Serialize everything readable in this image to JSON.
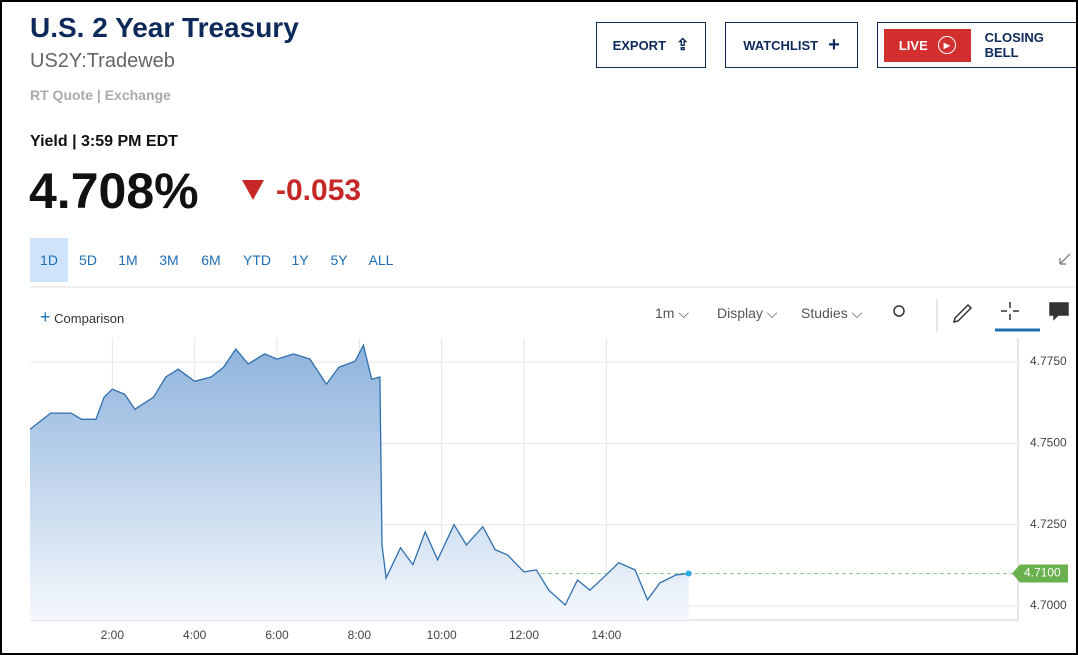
{
  "header": {
    "title": "U.S. 2 Year Treasury",
    "symbol": "US2Y:Tradeweb",
    "source": "RT Quote | Exchange",
    "yield_time": "Yield | 3:59 PM EDT",
    "price": "4.708%",
    "change": "-0.053"
  },
  "buttons": [
    "EXPORT",
    "WATCHLIST",
    "LIVE",
    "CLOSING BELL"
  ],
  "ranges": [
    "1D",
    "5D",
    "1M",
    "3M",
    "6M",
    "YTD",
    "1Y",
    "5Y",
    "ALL"
  ],
  "toolbar": {
    "comparison": "Comparison",
    "interval": "1m",
    "display": "Display",
    "studies": "Studies"
  },
  "chart_data": {
    "type": "line",
    "series": [
      {
        "name": "US2Y",
        "color": "#2f6fae",
        "x": [
          0,
          0.5,
          1.0,
          1.25,
          1.6,
          1.8,
          2.0,
          2.3,
          2.55,
          3.0,
          3.3,
          3.6,
          4.0,
          4.4,
          4.7,
          5.0,
          5.3,
          5.7,
          6.0,
          6.4,
          6.8,
          7.2,
          7.5,
          7.9,
          8.1,
          8.3,
          8.5,
          8.55,
          8.65,
          9.0,
          9.3,
          9.6,
          9.9,
          10.3,
          10.6,
          11.0,
          11.3,
          11.6,
          12.0,
          12.3,
          12.6,
          13.0,
          13.3,
          13.6,
          14.0,
          14.3,
          14.7,
          15.0,
          15.3,
          15.7,
          16.0
        ],
        "values": [
          4.7543,
          4.7593,
          4.7593,
          4.7574,
          4.7574,
          4.7642,
          4.7667,
          4.7651,
          4.7605,
          4.7642,
          4.7704,
          4.7728,
          4.7691,
          4.7704,
          4.7734,
          4.779,
          4.7744,
          4.7775,
          4.7759,
          4.7775,
          4.7759,
          4.7682,
          4.7734,
          4.7753,
          4.7802,
          4.7697,
          4.7704,
          4.7188,
          4.7086,
          4.7179,
          4.7127,
          4.7228,
          4.7142,
          4.725,
          4.7188,
          4.7244,
          4.7173,
          4.7157,
          4.7105,
          4.7111,
          4.7049,
          4.7003,
          4.708,
          4.7049,
          4.7096,
          4.7133,
          4.7111,
          4.7019,
          4.7071,
          4.7096,
          4.71
        ]
      }
    ],
    "last_price": 4.71,
    "last_price_label": "4.7100",
    "xlim": [
      0,
      24
    ],
    "xticks": [
      {
        "value": 2,
        "label": "2:00"
      },
      {
        "value": 4,
        "label": "4:00"
      },
      {
        "value": 6,
        "label": "6:00"
      },
      {
        "value": 8,
        "label": "8:00"
      },
      {
        "value": 10,
        "label": "10:00"
      },
      {
        "value": 12,
        "label": "12:00"
      },
      {
        "value": 14,
        "label": "14:00"
      }
    ],
    "ylim": [
      4.6957,
      4.7824
    ],
    "yticks": [
      {
        "value": 4.7,
        "label": "4.7000"
      },
      {
        "value": 4.725,
        "label": "4.7250"
      },
      {
        "value": 4.75,
        "label": "4.7500"
      },
      {
        "value": 4.775,
        "label": "4.7750"
      }
    ],
    "grid": true
  }
}
